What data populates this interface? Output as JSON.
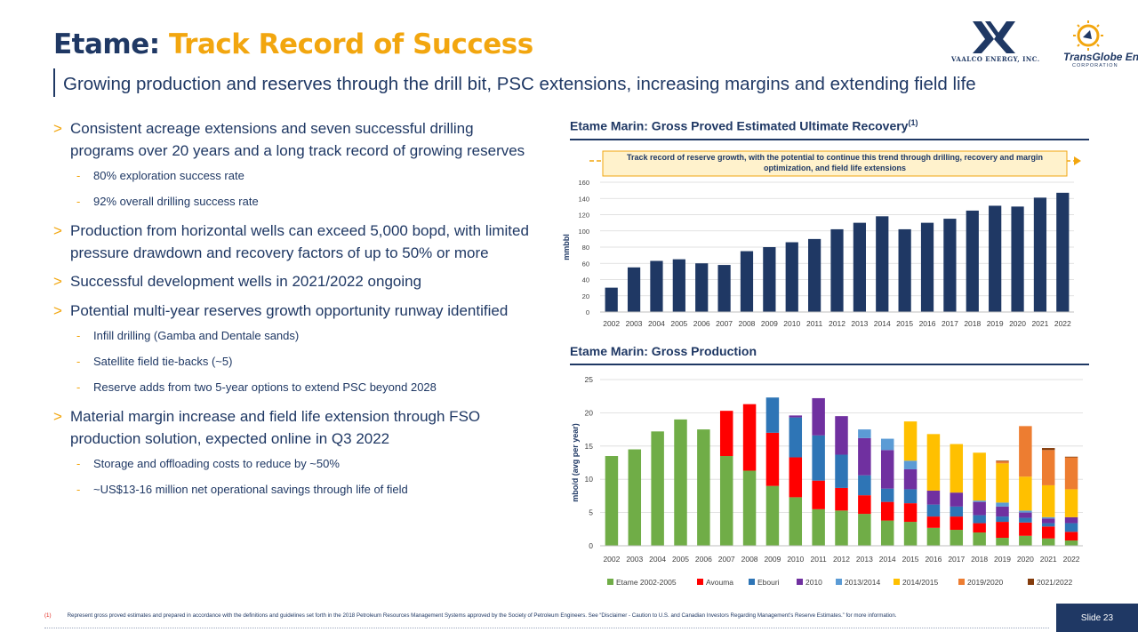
{
  "header": {
    "title_prefix": "Etame:",
    "title_accent": "Track Record of Success",
    "subtitle": "Growing production and reserves through the drill bit, PSC extensions, increasing margins and extending field life"
  },
  "logos": {
    "vaalco_text": "VAALCO ENERGY, INC.",
    "tge_name": "TransGlobe Energy",
    "tge_sub": "CORPORATION"
  },
  "bullets": [
    {
      "text": "Consistent acreage extensions and seven successful drilling programs over 20 years and a long track record of growing reserves",
      "subs": [
        "80% exploration success rate",
        "92% overall drilling success rate"
      ]
    },
    {
      "text": "Production from horizontal wells can exceed 5,000 bopd, with limited pressure drawdown and recovery factors of up to 50% or more",
      "subs": []
    },
    {
      "text": "Successful development wells in 2021/2022 ongoing",
      "subs": []
    },
    {
      "text": "Potential multi-year reserves growth opportunity runway identified",
      "subs": [
        "Infill drilling (Gamba and Dentale sands)",
        "Satellite field tie-backs (~5)",
        "Reserve adds from two 5-year options to extend PSC beyond 2028"
      ]
    },
    {
      "text": "Material margin increase and field life extension through FSO production solution, expected online in Q3 2022",
      "subs": [
        "Storage and offloading costs to reduce by ~50%",
        "~US$13-16 million net operational savings through life of field"
      ]
    }
  ],
  "colors": {
    "navy": "#1f3864",
    "gold": "#f2a60f",
    "bar": "#1f3864"
  },
  "chart_data": [
    {
      "type": "bar",
      "title": "Etame Marin: Gross Proved Estimated Ultimate Recovery",
      "title_sup": "(1)",
      "callout": "Track record of reserve growth, with the potential to continue this trend through drilling, recovery and margin optimization, and field life extensions",
      "ylabel": "mmbbl",
      "ylim": [
        0,
        160
      ],
      "yticks": [
        0,
        20,
        40,
        60,
        80,
        100,
        120,
        140,
        160
      ],
      "categories": [
        "2002",
        "2003",
        "2004",
        "2005",
        "2006",
        "2007",
        "2008",
        "2009",
        "2010",
        "2011",
        "2012",
        "2013",
        "2014",
        "2015",
        "2016",
        "2017",
        "2018",
        "2019",
        "2020",
        "2021",
        "2022"
      ],
      "values": [
        30,
        55,
        63,
        65,
        60,
        58,
        75,
        80,
        86,
        90,
        102,
        110,
        118,
        102,
        110,
        115,
        125,
        131,
        130,
        141,
        147
      ],
      "color": "#1f3864"
    },
    {
      "type": "bar",
      "stacked": true,
      "title": "Etame Marin: Gross Production",
      "ylabel": "mbo/d (avg per year)",
      "ylim": [
        0,
        25
      ],
      "yticks": [
        0,
        5,
        10,
        15,
        20,
        25
      ],
      "legend_position": "bottom",
      "categories": [
        "2002",
        "2003",
        "2004",
        "2005",
        "2006",
        "2007",
        "2008",
        "2009",
        "2010",
        "2011",
        "2012",
        "2013",
        "2014",
        "2015",
        "2016",
        "2017",
        "2018",
        "2019",
        "2020",
        "2021",
        "2022"
      ],
      "series": [
        {
          "name": "Etame 2002-2005",
          "color": "#70ad47",
          "values": [
            13.5,
            14.5,
            17.2,
            19.0,
            17.5,
            13.5,
            11.3,
            9.0,
            7.3,
            5.5,
            5.3,
            4.8,
            3.8,
            3.6,
            2.7,
            2.4,
            2.0,
            1.2,
            1.5,
            1.1,
            0.8
          ]
        },
        {
          "name": "Avouma",
          "color": "#ff0000",
          "values": [
            0,
            0,
            0,
            0,
            0,
            6.8,
            10.0,
            8.0,
            6.0,
            4.3,
            3.4,
            2.8,
            2.8,
            2.8,
            1.7,
            2.0,
            1.4,
            2.4,
            2.0,
            1.8,
            1.3
          ]
        },
        {
          "name": "Ebouri",
          "color": "#2e75b6",
          "values": [
            0,
            0,
            0,
            0,
            0,
            0,
            0,
            5.3,
            6.0,
            6.8,
            5.0,
            3.0,
            2.0,
            2.1,
            1.8,
            1.5,
            1.2,
            0.8,
            0.7,
            0.5,
            1.3
          ]
        },
        {
          "name": "2010",
          "color": "#7030a0",
          "values": [
            0,
            0,
            0,
            0,
            0,
            0,
            0,
            0,
            0.3,
            5.6,
            5.8,
            5.6,
            5.8,
            3.0,
            2.1,
            2.1,
            2.0,
            1.5,
            0.8,
            0.7,
            0.9
          ]
        },
        {
          "name": "2013/2014",
          "color": "#5b9bd5",
          "values": [
            0,
            0,
            0,
            0,
            0,
            0,
            0,
            0,
            0,
            0,
            0,
            1.3,
            1.7,
            1.3,
            0,
            0,
            0.2,
            0.6,
            0.3,
            0.2,
            0
          ]
        },
        {
          "name": "2014/2015",
          "color": "#ffc000",
          "values": [
            0,
            0,
            0,
            0,
            0,
            0,
            0,
            0,
            0,
            0,
            0,
            0,
            0,
            5.9,
            8.5,
            7.3,
            7.2,
            5.9,
            5.1,
            4.8,
            4.2
          ]
        },
        {
          "name": "2019/2020",
          "color": "#ed7d31",
          "values": [
            0,
            0,
            0,
            0,
            0,
            0,
            0,
            0,
            0,
            0,
            0,
            0,
            0,
            0,
            0,
            0,
            0,
            0.3,
            7.6,
            5.3,
            4.8
          ]
        },
        {
          "name": "2021/2022",
          "color": "#843c0c",
          "values": [
            0,
            0,
            0,
            0,
            0,
            0,
            0,
            0,
            0,
            0,
            0,
            0,
            0,
            0,
            0,
            0,
            0,
            0.1,
            0,
            0.3,
            0.1
          ]
        }
      ]
    }
  ],
  "footnote": {
    "num": "(1)",
    "text": "Represent gross proved estimates and prepared in accordance with the definitions and guidelines set forth in the 2018 Petroleum Resources Management Systems approved by the Society of Petroleum Engineers. See “Disclaimer - Caution to U.S. and Canadian Investors Regarding Management’s Reserve Estimates.” for more information."
  },
  "slide_label": "Slide 23"
}
